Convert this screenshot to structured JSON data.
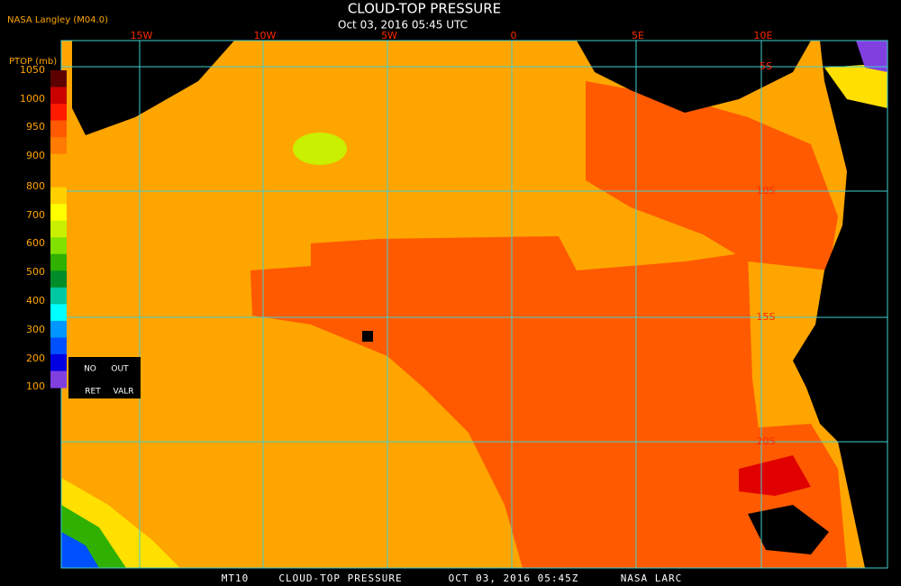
{
  "header": {
    "title": "CLOUD-TOP PRESSURE",
    "subtitle": "Oct 03, 2016 05:45 UTC",
    "source": "NASA Langley (M04.0)"
  },
  "legend": {
    "title": "PTOP (mb)",
    "labels": [
      "1050",
      "1000",
      "950",
      "900",
      "800",
      "700",
      "600",
      "500",
      "400",
      "300",
      "200",
      "100"
    ],
    "colors": [
      "#5c0000",
      "#c80000",
      "#ff1a00",
      "#ff5a00",
      "#ff7a00",
      "#ffa500",
      "#ffa500",
      "#ffd000",
      "#ffff00",
      "#c8f000",
      "#80e000",
      "#30b000",
      "#008c28",
      "#00c8a0",
      "#00ffff",
      "#0096ff",
      "#0050ff",
      "#0000e0",
      "#8040e0"
    ],
    "notes": [
      "NO",
      "OUT",
      "RET",
      "VALR"
    ]
  },
  "map": {
    "longitudes": [
      "15W",
      "10W",
      "5W",
      "0",
      "5E",
      "10E"
    ],
    "latitudes": [
      "5S",
      "10S",
      "15S",
      "20S"
    ]
  },
  "footer": [
    "MT10",
    "CLOUD-TOP PRESSURE",
    "OCT 03, 2016 05:45Z",
    "NASA LARC"
  ]
}
